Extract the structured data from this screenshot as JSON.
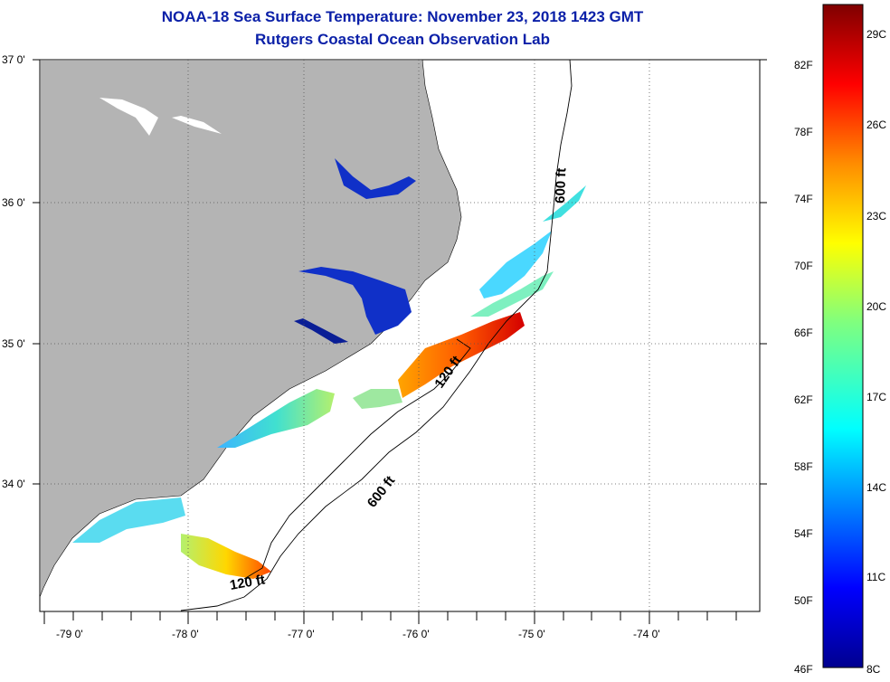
{
  "title": {
    "line1": "NOAA-18 Sea Surface Temperature:  November 23, 2018 1423 GMT",
    "line2": "Rutgers Coastal Ocean Observation Lab"
  },
  "map": {
    "lat_labels": [
      "37 0'",
      "36 0'",
      "35 0'",
      "34 0'"
    ],
    "lon_labels": [
      "-79 0'",
      "-78 0'",
      "-77 0'",
      "-76 0'",
      "-75 0'",
      "-74 0'"
    ],
    "contour_labels": [
      "600 ft",
      "600 ft",
      "120 ft",
      "120 ft"
    ],
    "land_color": "#b4b4b4",
    "gridlines": "dotted"
  },
  "colorbar": {
    "f_labels": [
      "82F",
      "78F",
      "74F",
      "70F",
      "66F",
      "62F",
      "58F",
      "54F",
      "50F",
      "46F"
    ],
    "c_labels": [
      "29C",
      "26C",
      "23C",
      "20C",
      "17C",
      "14C",
      "11C",
      "8C"
    ],
    "colors": [
      "#7f0000",
      "#ff0000",
      "#ff8c00",
      "#ffff00",
      "#7fff7f",
      "#00ffff",
      "#0080ff",
      "#0000ff",
      "#00008f"
    ]
  }
}
